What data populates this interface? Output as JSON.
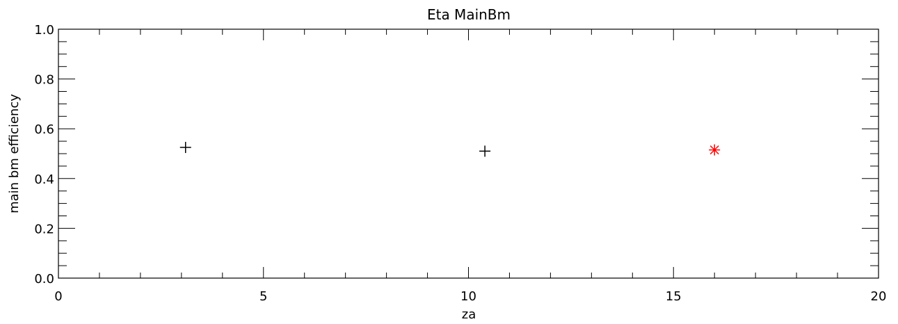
{
  "chart_data": {
    "type": "scatter",
    "title": "Eta MainBm",
    "xlabel": "za",
    "ylabel": "main bm efficiency",
    "xlim": [
      0,
      20
    ],
    "ylim": [
      0,
      1
    ],
    "x_ticks": [
      0,
      5,
      10,
      15,
      20
    ],
    "x_tick_labels": [
      "0",
      "5",
      "10",
      "15",
      "20"
    ],
    "y_ticks": [
      0,
      0.2,
      0.4,
      0.6,
      0.8,
      1.0
    ],
    "y_tick_labels": [
      "0.0",
      "0.2",
      "0.4",
      "0.6",
      "0.8",
      "1.0"
    ],
    "x_minor_step": 1,
    "y_minor_step": 0.05,
    "grid": false,
    "series": [
      {
        "marker": "plus",
        "color": "#000000",
        "points": [
          {
            "x": 3.1,
            "y": 0.525
          },
          {
            "x": 10.4,
            "y": 0.51
          }
        ]
      },
      {
        "marker": "asterisk",
        "color": "#ff0000",
        "points": [
          {
            "x": 16.0,
            "y": 0.515
          }
        ]
      }
    ]
  }
}
